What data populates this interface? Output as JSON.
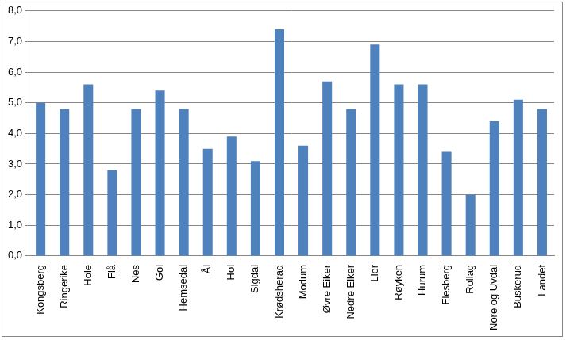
{
  "chart_data": {
    "type": "bar",
    "categories": [
      "Kongsberg",
      "Ringerike",
      "Hole",
      "Flå",
      "Nes",
      "Gol",
      "Hemsedal",
      "Ål",
      "Hol",
      "Sigdal",
      "Krødsherad",
      "Modum",
      "Øvre Eiker",
      "Nedre Eiker",
      "Lier",
      "Røyken",
      "Hurum",
      "Flesberg",
      "Rollag",
      "Nore og Uvdal",
      "Buskerud",
      "Landet"
    ],
    "values": [
      5.0,
      4.8,
      5.6,
      2.8,
      4.8,
      5.4,
      4.8,
      3.5,
      3.9,
      3.1,
      7.4,
      3.6,
      5.7,
      4.8,
      6.9,
      5.6,
      5.6,
      3.4,
      2.0,
      4.4,
      5.1,
      4.8
    ],
    "color": "#4f81bd",
    "ylim": [
      0,
      8
    ],
    "yticks": [
      {
        "value": 0,
        "label": "0,0"
      },
      {
        "value": 1,
        "label": "1,0"
      },
      {
        "value": 2,
        "label": "2,0"
      },
      {
        "value": 3,
        "label": "3,0"
      },
      {
        "value": 4,
        "label": "4,0"
      },
      {
        "value": 5,
        "label": "5,0"
      },
      {
        "value": 6,
        "label": "6,0"
      },
      {
        "value": 7,
        "label": "7,0"
      },
      {
        "value": 8,
        "label": "8,0"
      }
    ],
    "grid": true
  }
}
